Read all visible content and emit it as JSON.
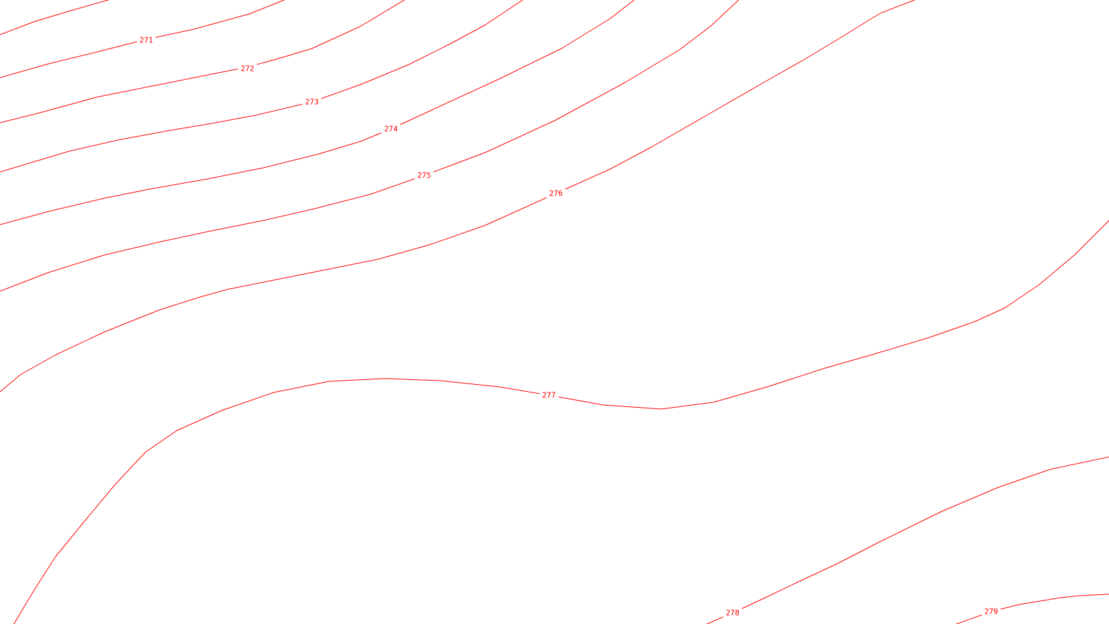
{
  "map": {
    "line_color": "#ff0000",
    "background_color": "#ffffff",
    "contours": [
      {
        "label": "271"
      },
      {
        "label": "272"
      },
      {
        "label": "273"
      },
      {
        "label": "274"
      },
      {
        "label": "275"
      },
      {
        "label": "276"
      },
      {
        "label": "277"
      },
      {
        "label": "278"
      },
      {
        "label": "279"
      }
    ],
    "unlabeled_contour_count": 1
  }
}
